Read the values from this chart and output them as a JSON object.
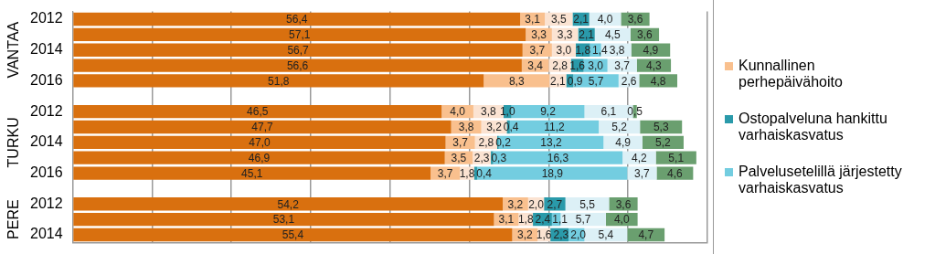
{
  "chart_data": {
    "type": "bar",
    "orientation": "horizontal",
    "stacked": true,
    "categories": [
      "2012",
      null,
      "2014",
      null,
      "2016",
      null,
      "2012",
      null,
      "2014",
      null,
      "2016",
      null,
      "2012",
      null,
      "2014"
    ],
    "series": [
      {
        "color": "#d9700f",
        "values": [
          56.4,
          57.1,
          56.7,
          56.6,
          51.8,
          null,
          46.5,
          47.7,
          47.0,
          46.9,
          45.1,
          null,
          54.2,
          53.1,
          55.4
        ],
        "value_labels": [
          "56,4",
          "57,1",
          "56,7",
          "56,6",
          "51,8",
          null,
          "46,5",
          "47,7",
          "47,0",
          "46,9",
          "45,1",
          null,
          "54,2",
          "53,1",
          "55,4"
        ]
      },
      {
        "name": "Kunnallinen perhepäivähoito",
        "color": "#f9c08e",
        "values": [
          3.1,
          3.3,
          3.7,
          3.4,
          8.3,
          null,
          4.0,
          3.8,
          3.7,
          3.5,
          3.7,
          null,
          3.2,
          3.1,
          3.2
        ],
        "value_labels": [
          "3,1",
          "3,3",
          "3,7",
          "3,4",
          "8,3",
          null,
          "4,0",
          "3,8",
          "3,7",
          "3,5",
          "3,7",
          null,
          "3,2",
          "3,1",
          "3,2"
        ]
      },
      {
        "color": "#fbe3d2",
        "values": [
          3.5,
          3.3,
          3.0,
          2.8,
          2.1,
          null,
          3.8,
          3.2,
          2.8,
          2.3,
          1.8,
          null,
          2.0,
          1.8,
          1.6
        ],
        "value_labels": [
          "3,5",
          "3,3",
          "3,0",
          "2,8",
          "2,1",
          null,
          "3,8",
          "3,2",
          "2,8",
          "2,3",
          "1,8",
          null,
          "2,0",
          "1,8",
          "1,6"
        ]
      },
      {
        "name": "Ostopalveluna hankittu varhaiskasvatus",
        "color": "#2a9aaa",
        "values": [
          2.1,
          2.1,
          1.8,
          1.6,
          0.9,
          null,
          1.0,
          0.4,
          0.2,
          0.3,
          0.4,
          null,
          2.7,
          2.4,
          2.3
        ],
        "value_labels": [
          "2,1",
          "2,1",
          "1,8",
          "1,6",
          "0,9",
          null,
          "1,0",
          "0,4",
          "0,2",
          "0,3",
          "0,4",
          null,
          "2,7",
          "2,4",
          "2,3"
        ]
      },
      {
        "name": "Palvelusetelillä järjestetty varhaiskasvatus",
        "color": "#73cde0",
        "values": [
          null,
          null,
          1.4,
          3.0,
          5.7,
          null,
          9.2,
          11.2,
          13.2,
          16.3,
          18.9,
          null,
          null,
          1.1,
          2.0
        ],
        "value_labels": [
          null,
          null,
          "1,4",
          "3,0",
          "5,7",
          null,
          "9,2",
          "11,2",
          "13,2",
          "16,3",
          "18,9",
          null,
          null,
          "1,1",
          "2,0"
        ]
      },
      {
        "color": "#dcf0f6",
        "values": [
          4.0,
          4.5,
          3.8,
          3.7,
          2.6,
          null,
          6.1,
          5.2,
          4.9,
          4.2,
          3.7,
          null,
          5.5,
          5.7,
          5.4
        ],
        "value_labels": [
          "4,0",
          "4,5",
          "3,8",
          "3,7",
          "2,6",
          null,
          "6,1",
          "5,2",
          "4,9",
          "4,2",
          "3,7",
          null,
          "5,5",
          "5,7",
          "5,4"
        ]
      },
      {
        "color": "#6a9f6f",
        "values": [
          3.6,
          3.6,
          4.9,
          4.3,
          4.8,
          null,
          0.5,
          5.3,
          5.2,
          5.1,
          4.6,
          null,
          3.6,
          4.0,
          4.7
        ],
        "value_labels": [
          "3,6",
          "3,6",
          "4,9",
          "4,3",
          "4,8",
          null,
          "0,5",
          "5,3",
          "5,2",
          "5,1",
          "4,6",
          null,
          "3,6",
          "4,0",
          "4,7"
        ]
      }
    ],
    "tick_labels": "y",
    "grid": "x",
    "legend": "right",
    "annotations": [
      "VANTAA",
      "TURKU",
      "PERE"
    ]
  }
}
